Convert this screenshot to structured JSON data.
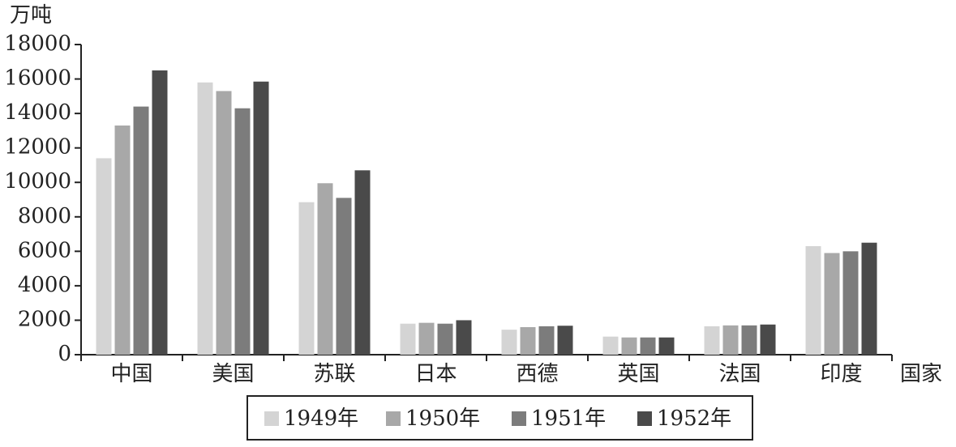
{
  "chart_data": {
    "type": "bar",
    "y_axis_label": "万吨",
    "x_axis_label": "国家",
    "categories": [
      "中国",
      "美国",
      "苏联",
      "日本",
      "西德",
      "英国",
      "法国",
      "印度"
    ],
    "series": [
      {
        "name": "1949年",
        "color": "#d4d4d4",
        "values": [
          11400,
          15800,
          8850,
          1800,
          1450,
          1050,
          1650,
          6300
        ]
      },
      {
        "name": "1950年",
        "color": "#a8a8a8",
        "values": [
          13300,
          15300,
          9950,
          1850,
          1600,
          1000,
          1700,
          5900
        ]
      },
      {
        "name": "1951年",
        "color": "#7c7c7c",
        "values": [
          14400,
          14300,
          9100,
          1800,
          1650,
          1000,
          1700,
          6000
        ]
      },
      {
        "name": "1952年",
        "color": "#4a4a4a",
        "values": [
          16500,
          15850,
          10700,
          2000,
          1680,
          1000,
          1750,
          6500
        ]
      }
    ],
    "ylim": [
      0,
      18000
    ],
    "yticks": [
      0,
      2000,
      4000,
      6000,
      8000,
      10000,
      12000,
      14000,
      16000,
      18000
    ]
  }
}
